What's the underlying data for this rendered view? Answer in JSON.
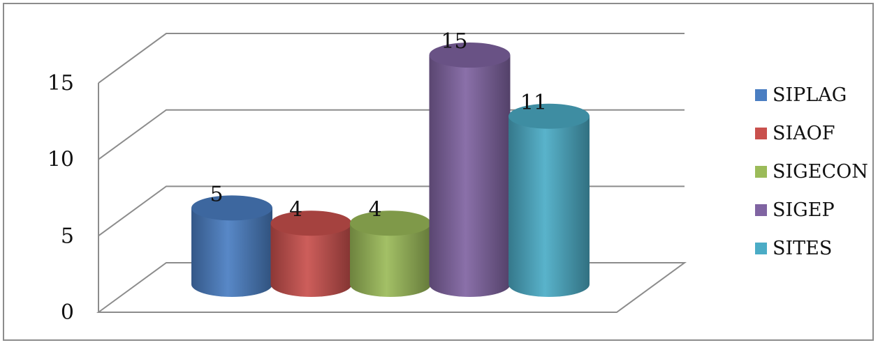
{
  "chart_data": {
    "type": "bar",
    "style": "3d-cylinder",
    "categories": [
      "SIPLAG",
      "SIAOF",
      "SIGECON",
      "SIGEP",
      "SITES"
    ],
    "values": [
      5,
      4,
      4,
      15,
      11
    ],
    "data_labels": [
      "5",
      "4",
      "4",
      "15",
      "11"
    ],
    "colors": [
      "#4a7ec2",
      "#c9504d",
      "#9bbb59",
      "#8064a2",
      "#4bacc6"
    ],
    "ylim": [
      0,
      15
    ],
    "yticks": [
      "0",
      "5",
      "10",
      "15"
    ],
    "grid": true,
    "legend_position": "right",
    "legend": [
      "SIPLAG",
      "SIAOF",
      "SIGECON",
      "SIGEP",
      "SITES"
    ]
  }
}
